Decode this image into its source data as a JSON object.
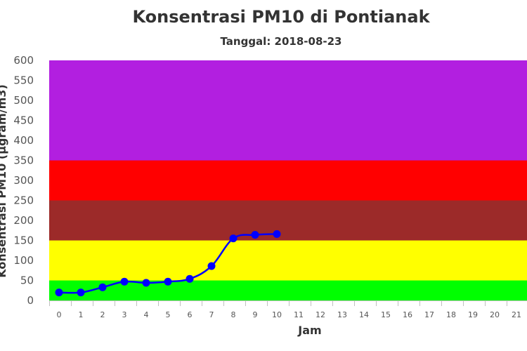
{
  "chart_data": {
    "type": "line",
    "title": "Konsentrasi PM10 di Pontianak",
    "subtitle": "Tanggal: 2018-08-23",
    "xlabel": "Jam",
    "ylabel": "Konsentrasi PM10 (µgram/m3)",
    "ylim": [
      0,
      600
    ],
    "yticks": [
      "0",
      "50",
      "100",
      "150",
      "200",
      "250",
      "300",
      "350",
      "400",
      "450",
      "500",
      "550",
      "600"
    ],
    "categories": [
      "0",
      "1",
      "2",
      "3",
      "4",
      "5",
      "6",
      "7",
      "8",
      "9",
      "10",
      "11",
      "12",
      "13",
      "14",
      "15",
      "16",
      "17",
      "18",
      "19",
      "20",
      "21"
    ],
    "series": [
      {
        "x": [
          0,
          1,
          2,
          3,
          4,
          5,
          6,
          7,
          8,
          9,
          10
        ],
        "values": [
          20,
          20,
          33,
          47,
          44,
          47,
          54,
          86,
          155,
          164,
          166
        ],
        "color": "#0000ff"
      }
    ],
    "bands": [
      {
        "from": 0,
        "to": 50,
        "color": "#00ff00"
      },
      {
        "from": 50,
        "to": 150,
        "color": "#ffff00"
      },
      {
        "from": 150,
        "to": 250,
        "color": "#9c2a29"
      },
      {
        "from": 250,
        "to": 350,
        "color": "#ff0000"
      },
      {
        "from": 350,
        "to": 600,
        "color": "#b21fe0"
      }
    ],
    "grid": false,
    "legend": "none"
  }
}
